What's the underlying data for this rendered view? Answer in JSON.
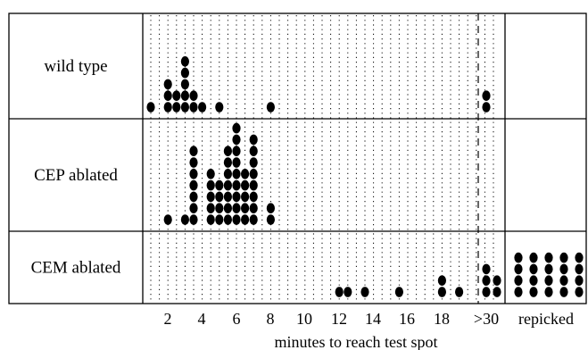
{
  "chart_data": {
    "type": "scatter",
    "subtype": "dot-plot",
    "xlabel": "minutes to reach test spot",
    "x_ticks": [
      "2",
      "4",
      "6",
      "8",
      "10",
      "12",
      "14",
      "16",
      "18",
      ">30",
      "repicked"
    ],
    "grid": "dotted vertical lines at half-minute intervals",
    "rows": [
      {
        "name": "wild type",
        "counts": [
          {
            "x": 1,
            "n": 1
          },
          {
            "x": 2,
            "n": 3
          },
          {
            "x": 2.5,
            "n": 2
          },
          {
            "x": 3,
            "n": 5
          },
          {
            "x": 3.5,
            "n": 2
          },
          {
            "x": 4,
            "n": 1
          },
          {
            "x": 5,
            "n": 1
          },
          {
            "x": 8,
            "n": 1
          },
          {
            "x": ">30",
            "n": 2
          }
        ]
      },
      {
        "name": "CEP ablated",
        "counts": [
          {
            "x": 2,
            "n": 1
          },
          {
            "x": 3,
            "n": 1
          },
          {
            "x": 3.5,
            "n": 7
          },
          {
            "x": 4.5,
            "n": 5
          },
          {
            "x": 5,
            "n": 4
          },
          {
            "x": 5.5,
            "n": 7
          },
          {
            "x": 6,
            "n": 9
          },
          {
            "x": 6.5,
            "n": 5
          },
          {
            "x": 7,
            "n": 8
          },
          {
            "x": 8,
            "n": 2
          }
        ]
      },
      {
        "name": "CEM ablated",
        "counts": [
          {
            "x": 12,
            "n": 1
          },
          {
            "x": 12.5,
            "n": 1
          },
          {
            "x": 13.5,
            "n": 1
          },
          {
            "x": 15.5,
            "n": 1
          },
          {
            "x": 18,
            "n": 2
          },
          {
            "x": 19,
            "n": 1
          },
          {
            "x": ">30",
            "n": 3
          },
          {
            "x": ">30+",
            "n": 2
          },
          {
            "x": "repicked",
            "n": 20
          }
        ]
      }
    ]
  }
}
